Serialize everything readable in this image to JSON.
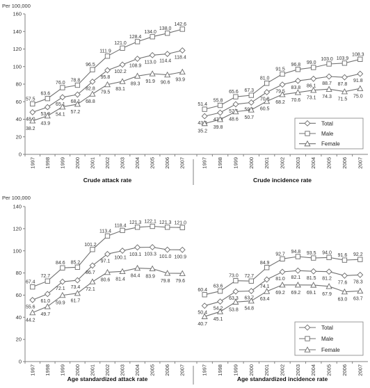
{
  "colors": {
    "series": "#707070",
    "axis": "#808080",
    "background": "#ffffff"
  },
  "chart_data": [
    {
      "type": "line",
      "panel": "top",
      "ylabel": "Per 100,000",
      "ylim": [
        0,
        160
      ],
      "yticks": [
        0,
        20,
        40,
        60,
        80,
        100,
        120,
        140,
        160
      ],
      "legend_position": "bottom-right of right subplot",
      "subplots": [
        {
          "xlabel": "Crude attack rate",
          "categories": [
            "1997",
            "1998",
            "1999",
            "2000",
            "2001",
            "2002",
            "2003",
            "2004",
            "2005",
            "2006",
            "2007"
          ],
          "series": [
            {
              "name": "Total",
              "marker": "diamond",
              "values": [
                48.0,
                53.8,
                65.1,
                68.1,
                82.8,
                95.8,
                102.2,
                108.9,
                113.0,
                114.4,
                118.4
              ],
              "labels": [
                "48.0",
                "53.8",
                "65.1",
                "68.1",
                "82.8",
                "95.8",
                "102.2",
                "108.9",
                "113.0",
                "114.4",
                "118.4"
              ]
            },
            {
              "name": "Male",
              "marker": "square",
              "values": [
                57.5,
                63.6,
                76.0,
                78.8,
                96.5,
                111.9,
                121.0,
                128.4,
                134.0,
                138.0,
                142.6
              ],
              "labels": [
                "57.5",
                "63.6",
                "76.0",
                "78.8",
                "96.5",
                "111.9",
                "121.0",
                "128.4",
                "134.0",
                "138.0",
                "142.6"
              ]
            },
            {
              "name": "Female",
              "marker": "triangle",
              "values": [
                38.2,
                43.9,
                54.1,
                57.2,
                68.8,
                79.5,
                83.1,
                89.3,
                91.9,
                90.6,
                93.9
              ],
              "labels": [
                "38.2",
                "43.9",
                "54.1",
                "57.2",
                "68.8",
                "79.5",
                "83.1",
                "89.3",
                "91.9",
                "90.6",
                "93.9"
              ]
            }
          ]
        },
        {
          "xlabel": "Crude incidence rate",
          "categories": [
            "1997",
            "1998",
            "1999",
            "2000",
            "2001",
            "2002",
            "2003",
            "2004",
            "2005",
            "2006",
            "2007"
          ],
          "series": [
            {
              "name": "Total",
              "marker": "diamond",
              "values": [
                43.5,
                47.5,
                57.1,
                59.1,
                70.8,
                79.5,
                83.8,
                86.1,
                88.7,
                87.8,
                91.8
              ],
              "labels": [
                "43.5",
                "47.5",
                "57.1",
                "59.1",
                "70.8",
                "79.5",
                "83.8",
                "86.1",
                "88.7",
                "87.8",
                "91.8"
              ]
            },
            {
              "name": "Male",
              "marker": "square",
              "values": [
                51.4,
                55.8,
                65.6,
                67.3,
                81.0,
                91.5,
                96.8,
                99.0,
                103.0,
                103.9,
                108.3
              ],
              "labels": [
                "51.4",
                "55.8",
                "65.6",
                "67.3",
                "81.0",
                "91.5",
                "96.8",
                "99.0",
                "103.0",
                "103.9",
                "108.3"
              ]
            },
            {
              "name": "Female",
              "marker": "triangle",
              "values": [
                35.2,
                39.8,
                48.6,
                50.7,
                60.5,
                68.2,
                70.6,
                73.1,
                74.3,
                71.5,
                75.0
              ],
              "labels": [
                "35.2",
                "39.8",
                "48.6",
                "50.7",
                "60.5",
                "68.2",
                "70.6",
                "73.1",
                "74.3",
                "71.5",
                "75.0"
              ]
            }
          ]
        }
      ]
    },
    {
      "type": "line",
      "panel": "bottom",
      "ylabel": "Per 100,000",
      "ylim": [
        0,
        140
      ],
      "yticks": [
        0,
        20,
        40,
        60,
        80,
        100,
        120,
        140
      ],
      "legend_position": "bottom-right of right subplot",
      "subplots": [
        {
          "xlabel": "Age standardized attack rate",
          "categories": [
            "1997",
            "1998",
            "1999",
            "2000",
            "2001",
            "2002",
            "2003",
            "2004",
            "2005",
            "2006",
            "2007"
          ],
          "series": [
            {
              "name": "Total",
              "marker": "diamond",
              "values": [
                55.6,
                61.0,
                72.1,
                73.4,
                86.7,
                97.1,
                100.1,
                103.1,
                103.3,
                101.0,
                100.9
              ],
              "labels": [
                "55.6",
                "61.0",
                "72.1",
                "73.4",
                "86.7",
                "97.1",
                "100.1",
                "103.1",
                "103.3",
                "101.0",
                "100.9"
              ]
            },
            {
              "name": "Male",
              "marker": "square",
              "values": [
                67.4,
                72.7,
                84.6,
                85.2,
                101.2,
                113.4,
                118.4,
                121.3,
                122.1,
                121.3,
                121.0
              ],
              "labels": [
                "67.4",
                "72.7",
                "84.6",
                "85.2",
                "101.2",
                "113.4",
                "118.4",
                "121.3",
                "122.1",
                "121.3",
                "121.0"
              ]
            },
            {
              "name": "Female",
              "marker": "triangle",
              "values": [
                44.2,
                49.7,
                59.9,
                61.7,
                72.1,
                80.6,
                81.4,
                84.4,
                83.9,
                79.8,
                79.6
              ],
              "labels": [
                "44.2",
                "49.7",
                "59.9",
                "61.7",
                "72.1",
                "80.6",
                "81.4",
                "84.4",
                "83.9",
                "79.8",
                "79.6"
              ]
            }
          ]
        },
        {
          "xlabel": "Age standardized incidence rate",
          "categories": [
            "1997",
            "1998",
            "1999",
            "2000",
            "2001",
            "2002",
            "2003",
            "2004",
            "2005",
            "2006",
            "2007"
          ],
          "series": [
            {
              "name": "Total",
              "marker": "diamond",
              "values": [
                50.4,
                54.2,
                63.3,
                63.7,
                74.1,
                81.0,
                82.1,
                81.5,
                81.2,
                77.6,
                78.3
              ],
              "labels": [
                "50.4",
                "54.2",
                "63.3",
                "63.7",
                "74.1",
                "81.0",
                "82.1",
                "81.5",
                "81.2",
                "77.6",
                "78.3"
              ]
            },
            {
              "name": "Male",
              "marker": "square",
              "values": [
                60.4,
                63.6,
                73.0,
                72.7,
                84.9,
                92.7,
                94.8,
                93.5,
                94.0,
                91.6,
                92.2
              ],
              "labels": [
                "60.4",
                "63.6",
                "73.0",
                "72.7",
                "84.9",
                "92.7",
                "94.8",
                "93.5",
                "94.0",
                "91.6",
                "92.2"
              ]
            },
            {
              "name": "Female",
              "marker": "triangle",
              "values": [
                40.7,
                45.1,
                53.8,
                54.8,
                63.4,
                69.2,
                69.2,
                69.1,
                67.9,
                63.0,
                63.7
              ],
              "labels": [
                "40.7",
                "45.1",
                "53.8",
                "54.8",
                "63.4",
                "69.2",
                "69.2",
                "69.1",
                "67.9",
                "63.0",
                "63.7"
              ]
            }
          ]
        }
      ]
    }
  ]
}
